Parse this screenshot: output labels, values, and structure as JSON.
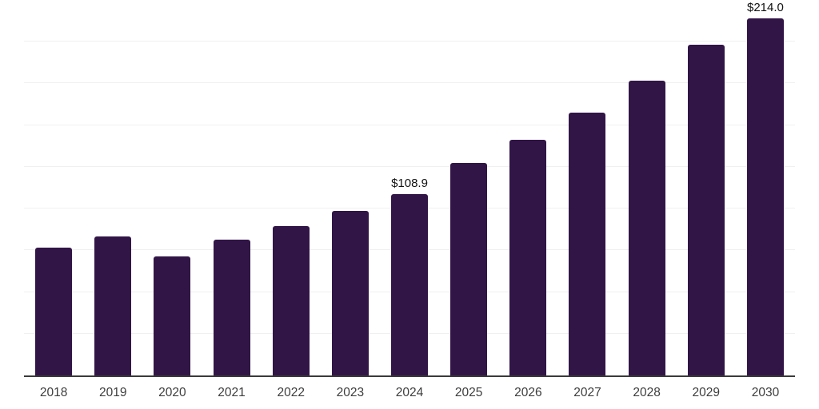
{
  "chart_data": {
    "type": "bar",
    "title": "",
    "xlabel": "",
    "ylabel": "",
    "categories": [
      "2018",
      "2019",
      "2020",
      "2021",
      "2022",
      "2023",
      "2024",
      "2025",
      "2026",
      "2027",
      "2028",
      "2029",
      "2030"
    ],
    "values": [
      76.4,
      83.4,
      71.2,
      81.5,
      89.3,
      98.4,
      108.9,
      127.5,
      141.1,
      157.6,
      176.7,
      198.2,
      214.0
    ],
    "annotations": [
      {
        "category": "2024",
        "text": "$108.9"
      },
      {
        "category": "2030",
        "text": "$214.0"
      }
    ],
    "ylim": [
      0,
      225
    ],
    "gridline_step": 25,
    "grid": true,
    "legend": false,
    "y_tick_labels_visible": false,
    "colors": {
      "bar": "#321547",
      "axis_line": "#3a3a3a",
      "gridline": "#f0f0f0",
      "data_label": "#111111",
      "tick_label": "#3d3d3d",
      "background": "#ffffff"
    }
  }
}
